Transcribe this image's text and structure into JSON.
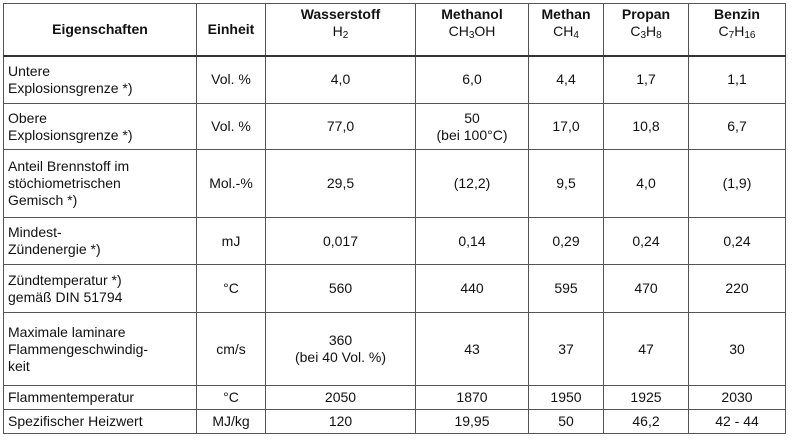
{
  "table": {
    "header": [
      {
        "name": "Eigenschaften"
      },
      {
        "name": "Einheit"
      },
      {
        "name": "Wasserstoff",
        "formula": [
          "H",
          "2"
        ]
      },
      {
        "name": "Methanol",
        "formula": [
          "CH",
          "3",
          "OH"
        ]
      },
      {
        "name": "Methan",
        "formula": [
          "CH",
          "4"
        ]
      },
      {
        "name": "Propan",
        "formula": [
          "C",
          "3",
          "H",
          "8"
        ]
      },
      {
        "name": "Benzin",
        "formula": [
          "C",
          "7",
          "H",
          "16"
        ]
      }
    ],
    "rows": [
      {
        "property": [
          "Untere",
          "Explosionsgrenze *)"
        ],
        "unit": "Vol. %",
        "values": [
          [
            "4,0"
          ],
          [
            "6,0"
          ],
          [
            "4,4"
          ],
          [
            "1,7"
          ],
          [
            "1,1"
          ]
        ]
      },
      {
        "property": [
          "Obere",
          "Explosionsgrenze *)"
        ],
        "unit": "Vol. %",
        "values": [
          [
            "77,0"
          ],
          [
            "50",
            "(bei 100°C)"
          ],
          [
            "17,0"
          ],
          [
            "10,8"
          ],
          [
            "6,7"
          ]
        ]
      },
      {
        "property": [
          "Anteil Brennstoff im",
          "stöchiometrischen",
          "Gemisch *)"
        ],
        "unit": "Mol.-%",
        "values": [
          [
            "29,5"
          ],
          [
            "(12,2)"
          ],
          [
            "9,5"
          ],
          [
            "4,0"
          ],
          [
            "(1,9)"
          ]
        ]
      },
      {
        "property": [
          "Mindest-",
          "Zündenergie *)"
        ],
        "unit": "mJ",
        "values": [
          [
            "0,017"
          ],
          [
            "0,14"
          ],
          [
            "0,29"
          ],
          [
            "0,24"
          ],
          [
            "0,24"
          ]
        ]
      },
      {
        "property": [
          "Zündtemperatur *)",
          "gemäß DIN 51794"
        ],
        "unit": "°C",
        "values": [
          [
            "560"
          ],
          [
            "440"
          ],
          [
            "595"
          ],
          [
            "470"
          ],
          [
            "220"
          ]
        ]
      },
      {
        "property": [
          "Maximale laminare",
          "Flammengeschwindig-",
          "keit"
        ],
        "unit": "cm/s",
        "values": [
          [
            "360",
            "(bei 40 Vol. %)"
          ],
          [
            "43"
          ],
          [
            "37"
          ],
          [
            "47"
          ],
          [
            "30"
          ]
        ]
      },
      {
        "property": [
          "Flammentemperatur"
        ],
        "unit": "°C",
        "values": [
          [
            "2050"
          ],
          [
            "1870"
          ],
          [
            "1950"
          ],
          [
            "1925"
          ],
          [
            "2030"
          ]
        ]
      },
      {
        "property": [
          "Spezifischer Heizwert"
        ],
        "unit": "MJ/kg",
        "values": [
          [
            "120"
          ],
          [
            "19,95"
          ],
          [
            "50"
          ],
          [
            "46,2"
          ],
          [
            "42 - 44"
          ]
        ]
      }
    ]
  }
}
